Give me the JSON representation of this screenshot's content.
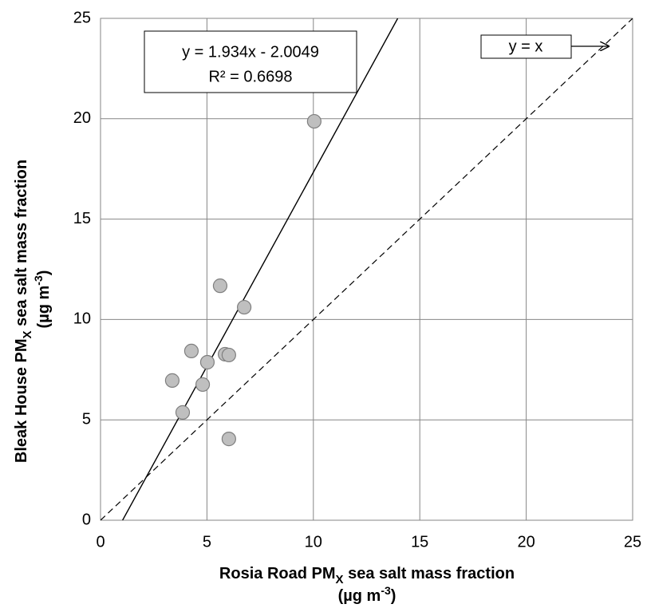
{
  "chart_data": {
    "type": "scatter",
    "x_label": [
      "Rosia Road PM",
      "X",
      " sea salt mass fraction"
    ],
    "x_label2": [
      "(µg m",
      "-3",
      ")"
    ],
    "y_label": [
      "Bleak House PM",
      "X",
      " sea salt mass fraction"
    ],
    "y_label2": [
      "(µg m",
      "-3",
      ")"
    ],
    "x": [
      10.04,
      5.62,
      6.75,
      4.27,
      5.02,
      5.85,
      6.03,
      3.37,
      4.8,
      3.86,
      6.03
    ],
    "series": [
      {
        "color": "#bfbfbf",
        "values": [
          19.87,
          11.68,
          10.61,
          8.43,
          7.87,
          8.27,
          8.23,
          6.96,
          6.76,
          5.37,
          4.05
        ]
      }
    ],
    "xlim": [
      0,
      25
    ],
    "ylim": [
      0,
      25
    ],
    "xticks": [
      0,
      5,
      10,
      15,
      20,
      25
    ],
    "yticks": [
      0,
      5,
      10,
      15,
      20,
      25
    ],
    "grid": true,
    "trendline": {
      "slope": 1.934,
      "intercept": -2.0049,
      "label": "y = 1.934x - 2.0049",
      "r2_label": "R² = 0.6698"
    },
    "reference_line": {
      "label": "y = x"
    }
  }
}
